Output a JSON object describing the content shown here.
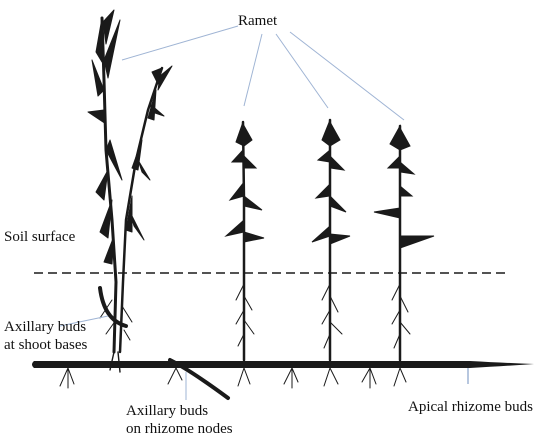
{
  "labels": {
    "ramet": "Ramet",
    "soil_surface": "Soil surface",
    "axillary_shoot_line1": "Axillary buds",
    "axillary_shoot_line2": "at shoot bases",
    "axillary_rhizome_line1": "Axillary buds",
    "axillary_rhizome_line2": "on rhizome nodes",
    "apical_rhizome": "Apical rhizome buds"
  },
  "colors": {
    "plant": "#1a1a1a",
    "leader_line": "#9fb4d4",
    "text": "#111111"
  }
}
